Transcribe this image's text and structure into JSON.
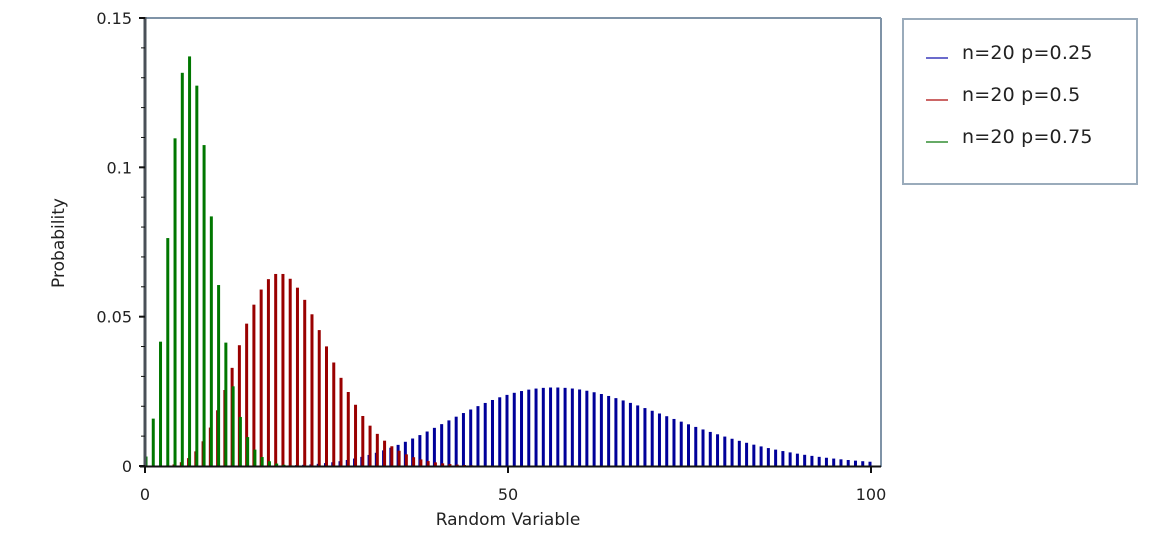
{
  "chart_data": {
    "type": "bar",
    "title": "",
    "xlabel": "Random Variable",
    "ylabel": "Probability",
    "xlim": [
      0,
      100
    ],
    "ylim": [
      0,
      0.15
    ],
    "xticks": [
      0,
      50,
      100
    ],
    "xtick_labels": [
      "0",
      "50",
      "100"
    ],
    "yticks": [
      0,
      0.05,
      0.1,
      0.15
    ],
    "ytick_labels": [
      "0",
      "0.05",
      "0.1",
      "0.15"
    ],
    "y_minor_step": 0.01,
    "grid": false,
    "legend_position": "right",
    "x": "integers 0..100",
    "series": [
      {
        "name": "n=20 p=0.25",
        "color": "#000099",
        "legend_color": "#6b6bcc",
        "offset": -1,
        "start": 18,
        "values": [
          9.06e-05,
          0.000136,
          0.000199,
          0.000284,
          0.000397,
          0.000543,
          0.00073,
          0.000964,
          0.001251,
          0.001598,
          0.002012,
          0.002498,
          0.00306,
          0.003702,
          0.004425,
          0.005229,
          0.006113,
          0.007074,
          0.008106,
          0.009201,
          0.010351,
          0.011545,
          0.012772,
          0.014018,
          0.01527,
          0.016513,
          0.017733,
          0.018915,
          0.020046,
          0.021112,
          0.022102,
          0.023004,
          0.023809,
          0.024509,
          0.025098,
          0.025572,
          0.025927,
          0.026163,
          0.02628,
          0.02628,
          0.026167,
          0.025945,
          0.025621,
          0.025201,
          0.024693,
          0.024105,
          0.023446,
          0.022725,
          0.02195,
          0.021131,
          0.020276,
          0.019395,
          0.018495,
          0.017583,
          0.016667,
          0.015754,
          0.014849,
          0.013958,
          0.013086,
          0.012236,
          0.011412,
          0.010618,
          0.009855,
          0.009125,
          0.00843,
          0.00777,
          0.007145,
          0.006557,
          0.006004,
          0.005486,
          0.005003,
          0.004553,
          0.004136,
          0.00375,
          0.003393,
          0.003065,
          0.002763,
          0.002487,
          0.002234,
          0.002004,
          0.001794,
          0.001604,
          0.001432
        ]
      },
      {
        "name": "n=20 p=0.5",
        "color": "#990000",
        "legend_color": "#cc6666",
        "offset": 0,
        "start": 0,
        "values": [
          9.5e-07,
          9.5e-06,
          5.01e-05,
          0.000184,
          0.000528,
          0.001267,
          0.002639,
          0.004901,
          0.008271,
          0.012866,
          0.018656,
          0.02544,
          0.03286,
          0.040443,
          0.047665,
          0.05402,
          0.059084,
          0.06256,
          0.064298,
          0.064298,
          0.06269,
          0.059705,
          0.055634,
          0.050797,
          0.045506,
          0.040045,
          0.034654,
          0.02952,
          0.024776,
          0.020504,
          0.016745,
          0.013504,
          0.010761,
          0.008479,
          0.006609,
          0.005098,
          0.003895,
          0.002947,
          0.002211,
          0.001644,
          0.001212,
          0.000887,
          0.000644,
          0.000464,
          0.000332,
          0.000236
        ]
      },
      {
        "name": "n=20 p=0.75",
        "color": "#007700",
        "legend_color": "#66aa66",
        "offset": 1,
        "start": 0,
        "values": [
          0.00317,
          0.01586,
          0.04163,
          0.07632,
          0.10971,
          0.13165,
          0.13714,
          0.12735,
          0.10745,
          0.08357,
          0.06059,
          0.04131,
          0.02668,
          0.01642,
          0.00968,
          0.00548,
          0.003,
          0.001589,
          0.000817,
          0.000408,
          0.000199,
          9.47e-05
        ]
      }
    ]
  },
  "legend": {
    "items": [
      {
        "label": "n=20 p=0.25",
        "color": "#6b6bcc"
      },
      {
        "label": "n=20 p=0.5",
        "color": "#cc6666"
      },
      {
        "label": "n=20 p=0.75",
        "color": "#66aa66"
      }
    ]
  }
}
